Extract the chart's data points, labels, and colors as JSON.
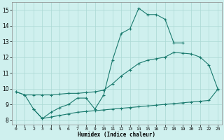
{
  "title": "",
  "xlabel": "Humidex (Indice chaleur)",
  "ylabel": "",
  "xlim": [
    -0.5,
    23.5
  ],
  "ylim": [
    7.7,
    15.5
  ],
  "xticks": [
    0,
    1,
    2,
    3,
    4,
    5,
    6,
    7,
    8,
    9,
    10,
    11,
    12,
    13,
    14,
    15,
    16,
    17,
    18,
    19,
    20,
    21,
    22,
    23
  ],
  "yticks": [
    8,
    9,
    10,
    11,
    12,
    13,
    14,
    15
  ],
  "background_color": "#cff0ee",
  "grid_color": "#aad8d4",
  "line_color": "#1a7a6e",
  "series1": {
    "x": [
      0,
      1,
      2,
      3,
      4,
      5,
      6,
      7,
      8,
      9,
      10,
      11,
      12,
      13,
      14,
      15,
      16,
      17,
      18,
      19
    ],
    "y": [
      9.8,
      9.6,
      8.7,
      8.1,
      8.5,
      8.8,
      9.0,
      9.4,
      9.4,
      8.7,
      9.6,
      11.8,
      13.5,
      13.8,
      15.1,
      14.7,
      14.7,
      14.4,
      12.9,
      12.9
    ]
  },
  "series2": {
    "x": [
      0,
      1,
      2,
      3,
      4,
      5,
      6,
      7,
      8,
      9,
      10,
      11,
      12,
      13,
      14,
      15,
      16,
      17,
      18,
      19,
      20,
      21,
      22,
      23
    ],
    "y": [
      9.8,
      9.6,
      9.6,
      9.6,
      9.6,
      9.65,
      9.7,
      9.7,
      9.75,
      9.8,
      9.9,
      10.3,
      10.8,
      11.2,
      11.6,
      11.8,
      11.9,
      12.0,
      12.3,
      12.25,
      12.2,
      12.0,
      11.5,
      10.0
    ]
  },
  "series3": {
    "x": [
      2,
      3,
      4,
      5,
      6,
      7,
      8,
      9,
      10,
      11,
      12,
      13,
      14,
      15,
      16,
      17,
      18,
      19,
      20,
      21,
      22,
      23
    ],
    "y": [
      8.7,
      8.1,
      8.2,
      8.3,
      8.4,
      8.5,
      8.55,
      8.6,
      8.65,
      8.7,
      8.75,
      8.8,
      8.85,
      8.9,
      8.95,
      9.0,
      9.05,
      9.1,
      9.15,
      9.2,
      9.25,
      9.95
    ]
  }
}
